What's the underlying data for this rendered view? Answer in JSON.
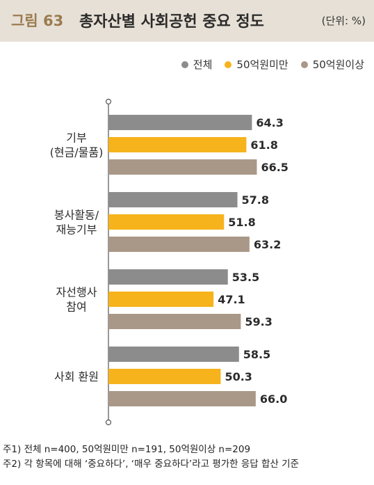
{
  "header": {
    "figure_label": "그림 63",
    "title": "총자산별 사회공헌 중요 정도",
    "unit": "(단위: %)"
  },
  "colors": {
    "header_bg": "#e7e0d6",
    "total": "#8c8c8c",
    "under_5b": "#f6b31c",
    "over_5b": "#a99888"
  },
  "chart_data": {
    "type": "bar",
    "orientation": "horizontal",
    "categories": [
      [
        "기부",
        "(현금/물품)"
      ],
      [
        "봉사활동/",
        "재능기부"
      ],
      [
        "자선행사",
        "참여"
      ],
      [
        "사회 환원"
      ]
    ],
    "series": [
      {
        "name": "전체",
        "color": "#8c8c8c",
        "values": [
          64.3,
          57.8,
          53.5,
          58.5
        ]
      },
      {
        "name": "50억원미만",
        "color": "#f6b31c",
        "values": [
          61.8,
          51.8,
          47.1,
          50.3
        ]
      },
      {
        "name": "50억원이상",
        "color": "#a99888",
        "values": [
          66.5,
          63.2,
          59.3,
          66.0
        ]
      }
    ],
    "value_labels": [
      [
        "64.3",
        "61.8",
        "66.5"
      ],
      [
        "57.8",
        "51.8",
        "63.2"
      ],
      [
        "53.5",
        "47.1",
        "59.3"
      ],
      [
        "58.5",
        "50.3",
        "66.0"
      ]
    ],
    "legend_position": "top-right",
    "grid": false
  },
  "notes": [
    "주1) 전체 n=400, 50억원미만 n=191, 50억원이상 n=209",
    "주2) 각 항목에 대해 ‘중요하다’, ‘매우 중요하다’라고 평가한 응답 합산 기준"
  ]
}
